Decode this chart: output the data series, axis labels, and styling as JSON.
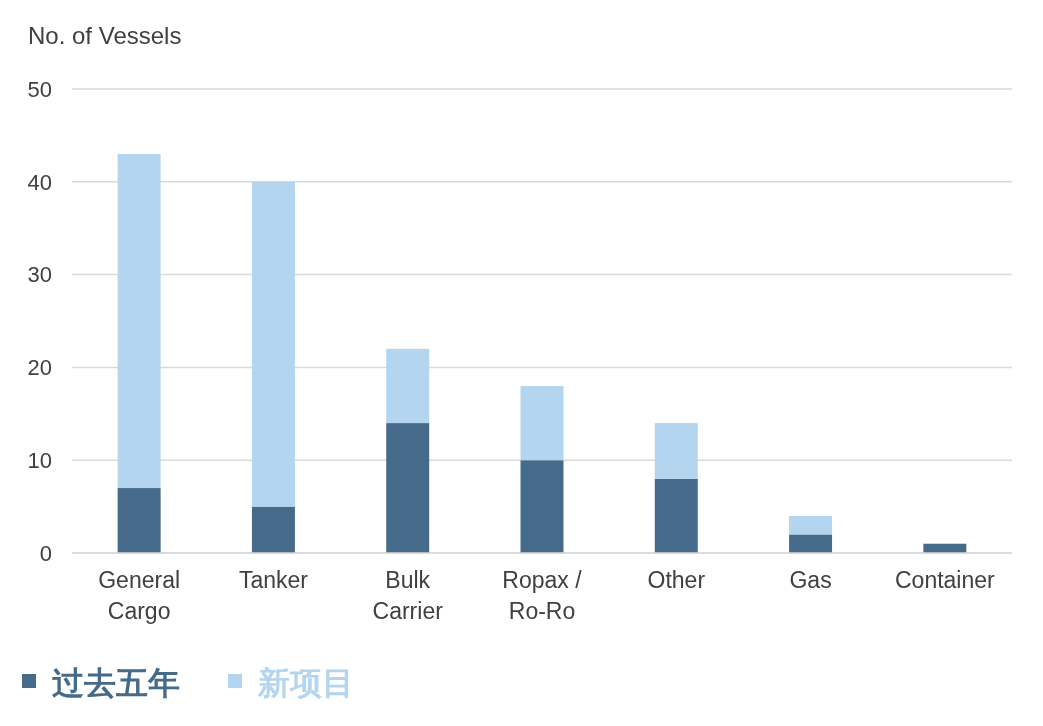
{
  "chart_data": {
    "type": "bar",
    "ylabel": "No. of Vessels",
    "stacked": true,
    "categories": [
      "General Cargo",
      "Tanker",
      "Bulk Carrier",
      "Ropax / Ro-Ro",
      "Other",
      "Gas",
      "Container"
    ],
    "series": [
      {
        "name": "过去五年",
        "color": "#466b8a",
        "values": [
          7,
          5,
          14,
          10,
          8,
          2,
          1
        ]
      },
      {
        "name": "新项目",
        "color": "#b3d5f0",
        "values": [
          36,
          35,
          8,
          8,
          6,
          2,
          0
        ]
      }
    ],
    "ylim": [
      0,
      50
    ],
    "yticks": [
      0,
      10,
      20,
      30,
      40,
      50
    ],
    "grid": "y",
    "legend": "bottom left"
  }
}
